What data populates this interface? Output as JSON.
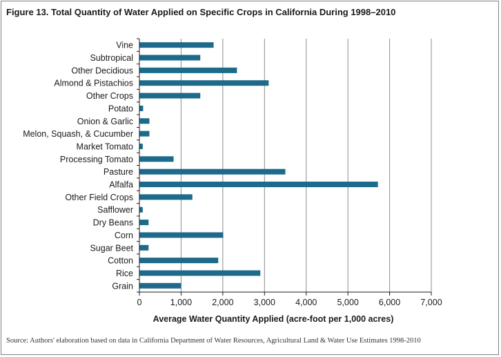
{
  "chart_data": {
    "type": "bar",
    "orientation": "horizontal",
    "title": "Figure 13. Total Quantity of Water Applied on Specific Crops in California During 1998–2010",
    "xlabel": "Average Water Quantity Applied (acre-foot per 1,000 acres)",
    "ylabel": "",
    "xlim": [
      0,
      7000
    ],
    "xticks": [
      0,
      1000,
      2000,
      3000,
      4000,
      5000,
      6000,
      7000
    ],
    "xtick_labels": [
      "0",
      "1,000",
      "2,000",
      "3,000",
      "4,000",
      "5,000",
      "6,000",
      "7,000"
    ],
    "grid": "vertical",
    "bar_color": "#1d6a8a",
    "categories": [
      "Vine",
      "Subtropical",
      "Other Decidious",
      "Almond & Pistachios",
      "Other Crops",
      "Potato",
      "Onion & Garlic",
      "Melon, Squash, & Cucumber",
      "Market Tomato",
      "Processing Tomato",
      "Pasture",
      "Alfalfa",
      "Other Field Crops",
      "Safflower",
      "Dry Beans",
      "Corn",
      "Sugar Beet",
      "Cotton",
      "Rice",
      "Grain"
    ],
    "values": [
      1780,
      1460,
      2340,
      3100,
      1460,
      90,
      240,
      240,
      80,
      820,
      3500,
      5720,
      1270,
      80,
      220,
      2010,
      220,
      1890,
      2900,
      1000
    ]
  },
  "source": "Source: Authors' elaboration based on data in California Department of Water Resources, Agricultural Land & Water Use Estimates 1998-2010"
}
